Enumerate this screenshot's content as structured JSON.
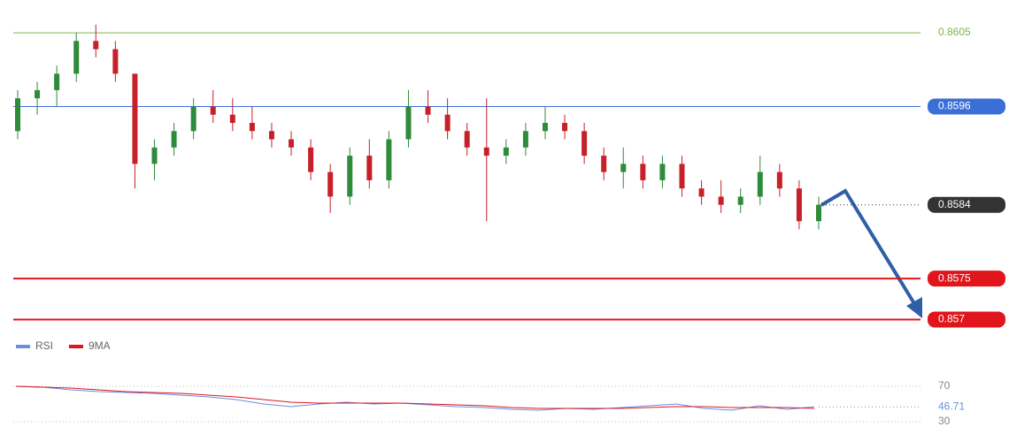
{
  "chart_data": [
    {
      "type": "candlestick",
      "open": [
        0.8593,
        0.8597,
        0.8598,
        0.86,
        0.8604,
        0.8603,
        0.86,
        0.8589,
        0.8591,
        0.8593,
        0.8596,
        0.8595,
        0.8594,
        0.8593,
        0.8592,
        0.8591,
        0.8588,
        0.8585,
        0.859,
        0.8587,
        0.8592,
        0.8596,
        0.8595,
        0.8593,
        0.8591,
        0.859,
        0.8591,
        0.8593,
        0.8594,
        0.8593,
        0.859,
        0.8588,
        0.8589,
        0.8587,
        0.8589,
        0.8586,
        0.8585,
        0.8584,
        0.8585,
        0.8588,
        0.8586,
        0.8582
      ],
      "high": [
        0.8598,
        0.8599,
        0.8601,
        0.8605,
        0.8606,
        0.8604,
        0.86,
        0.8592,
        0.8594,
        0.8597,
        0.8598,
        0.8597,
        0.8596,
        0.8594,
        0.8593,
        0.8592,
        0.8589,
        0.8591,
        0.8592,
        0.8593,
        0.8598,
        0.8598,
        0.8597,
        0.8594,
        0.8597,
        0.8592,
        0.8594,
        0.8596,
        0.8595,
        0.8594,
        0.8591,
        0.8591,
        0.859,
        0.859,
        0.859,
        0.8587,
        0.8587,
        0.8586,
        0.859,
        0.8589,
        0.8587,
        0.8585
      ],
      "low": [
        0.8592,
        0.8595,
        0.8596,
        0.8599,
        0.8602,
        0.8599,
        0.8586,
        0.8587,
        0.859,
        0.8592,
        0.8594,
        0.8593,
        0.8592,
        0.8591,
        0.859,
        0.8587,
        0.8583,
        0.8584,
        0.8586,
        0.8586,
        0.8591,
        0.8594,
        0.8592,
        0.859,
        0.8582,
        0.8589,
        0.859,
        0.8592,
        0.8592,
        0.8589,
        0.8587,
        0.8586,
        0.8586,
        0.8586,
        0.8585,
        0.8584,
        0.8583,
        0.8583,
        0.8584,
        0.8585,
        0.8581,
        0.8581
      ],
      "close": [
        0.8597,
        0.8598,
        0.86,
        0.8604,
        0.8603,
        0.86,
        0.8589,
        0.8591,
        0.8593,
        0.8596,
        0.8595,
        0.8594,
        0.8593,
        0.8592,
        0.8591,
        0.8588,
        0.8585,
        0.859,
        0.8587,
        0.8592,
        0.8596,
        0.8595,
        0.8593,
        0.8591,
        0.859,
        0.8591,
        0.8593,
        0.8594,
        0.8593,
        0.859,
        0.8588,
        0.8589,
        0.8587,
        0.8589,
        0.8586,
        0.8585,
        0.8584,
        0.8585,
        0.8588,
        0.8586,
        0.8582,
        0.8584
      ],
      "up_color": "#2e8b3a",
      "down_color": "#c8202a",
      "ylim": [
        0.8568,
        0.8609
      ],
      "levels": [
        {
          "value": 0.8605,
          "color": "#7ab648"
        },
        {
          "value": 0.8596,
          "color": "#3b6fd8"
        },
        {
          "value": 0.8584,
          "color": "#333333"
        },
        {
          "value": 0.8575,
          "color": "#e0161c"
        },
        {
          "value": 0.857,
          "color": "#e0161c"
        }
      ]
    },
    {
      "type": "line",
      "series": [
        {
          "name": "RSI",
          "color": "#6a8ee0",
          "values": [
            70,
            69,
            66,
            64,
            63,
            62,
            60,
            58,
            55,
            50,
            47,
            50,
            52,
            50,
            51,
            49,
            47,
            46,
            44,
            43,
            45,
            44,
            46,
            48,
            50,
            45,
            43,
            48,
            44,
            46.71
          ]
        },
        {
          "name": "9MA",
          "color": "#e0161c",
          "values": [
            70,
            69,
            68,
            66,
            64,
            63,
            62,
            60,
            58,
            55,
            52,
            51,
            51,
            51,
            51,
            50,
            49,
            48,
            46,
            45,
            45,
            45,
            45,
            46,
            47,
            47,
            46,
            46,
            46,
            45
          ]
        }
      ],
      "ylim": [
        20,
        90
      ],
      "yticks": [
        70,
        30
      ]
    }
  ]
}
